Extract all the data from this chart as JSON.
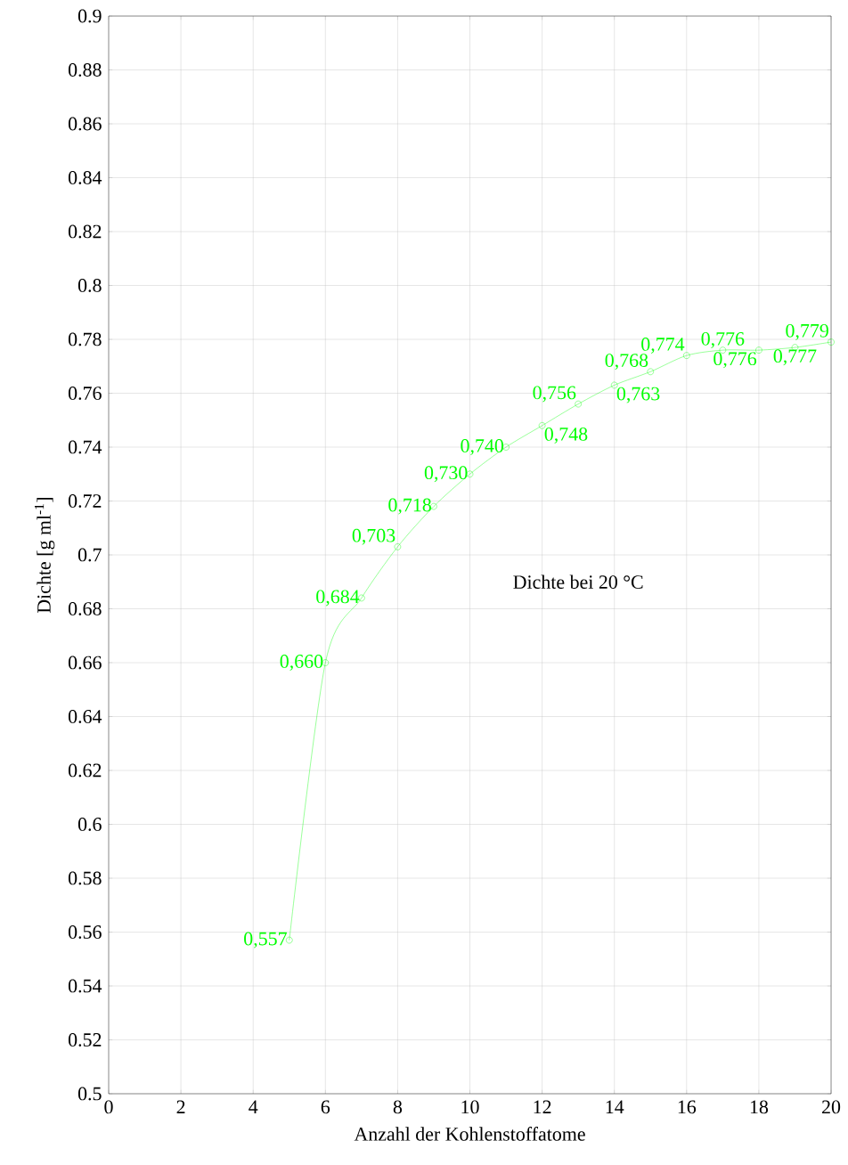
{
  "chart_data": {
    "type": "line",
    "xlabel": "Anzahl der Kohlenstoffatome",
    "ylabel": "Dichte [g ml$^{-1}$]",
    "x": [
      5,
      6,
      7,
      8,
      9,
      10,
      11,
      12,
      13,
      14,
      15,
      16,
      17,
      18,
      19,
      20
    ],
    "series": [
      {
        "color": "#00ff00",
        "values": [
          0.557,
          0.66,
          0.684,
          0.703,
          0.718,
          0.73,
          0.74,
          0.748,
          0.756,
          0.763,
          0.768,
          0.774,
          0.776,
          0.776,
          0.777,
          0.779
        ],
        "value_labels": [
          "0,557",
          "0,660",
          "0,684",
          "0,703",
          "0,718",
          "0,730",
          "0,740",
          "0,748",
          "0,756",
          "0,763",
          "0,768",
          "0,774",
          "0,776",
          "0,776",
          "0,777",
          "0,779"
        ]
      }
    ],
    "xlim": [
      0,
      20
    ],
    "ylim": [
      0.5,
      0.9
    ],
    "xticks": [
      0,
      2,
      4,
      6,
      8,
      10,
      12,
      14,
      16,
      18,
      20
    ],
    "yticks": [
      0.5,
      0.52,
      0.54,
      0.56,
      0.58,
      0.6,
      0.62,
      0.64,
      0.66,
      0.68,
      0.7,
      0.72,
      0.74,
      0.76,
      0.78,
      0.8,
      0.82,
      0.84,
      0.86,
      0.88,
      0.9
    ],
    "annotations": [
      "Dichte bei 20 °C"
    ],
    "grid": true,
    "marker": "circle",
    "line_style": "solid"
  }
}
